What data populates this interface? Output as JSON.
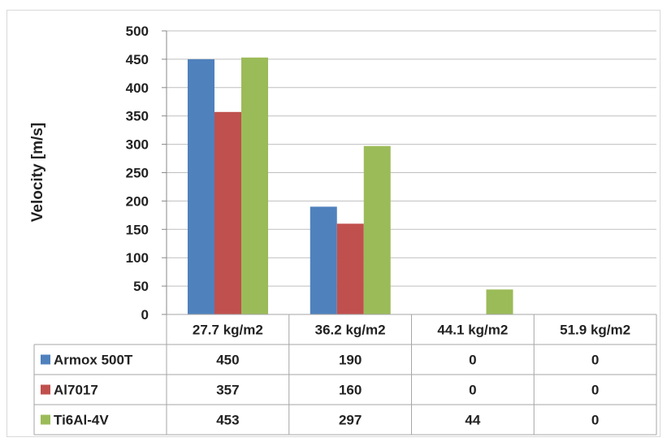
{
  "chart_data": {
    "type": "bar",
    "categories": [
      "27.7 kg/m2",
      "36.2 kg/m2",
      "44.1 kg/m2",
      "51.9 kg/m2"
    ],
    "series": [
      {
        "name": "Armox 500T",
        "values": [
          450,
          190,
          0,
          0
        ],
        "color": "#4f81bd"
      },
      {
        "name": "Al7017",
        "values": [
          357,
          160,
          0,
          0
        ],
        "color": "#c0504d"
      },
      {
        "name": "Ti6Al-4V",
        "values": [
          453,
          297,
          44,
          0
        ],
        "color": "#9bbb59"
      }
    ],
    "title": "",
    "xlabel": "",
    "ylabel": "Velocity [m/s]",
    "ylim": [
      0,
      500
    ],
    "yticks": [
      0,
      50,
      100,
      150,
      200,
      250,
      300,
      350,
      400,
      450,
      500
    ],
    "grid": true,
    "legend": "data-table",
    "data_table": true
  }
}
